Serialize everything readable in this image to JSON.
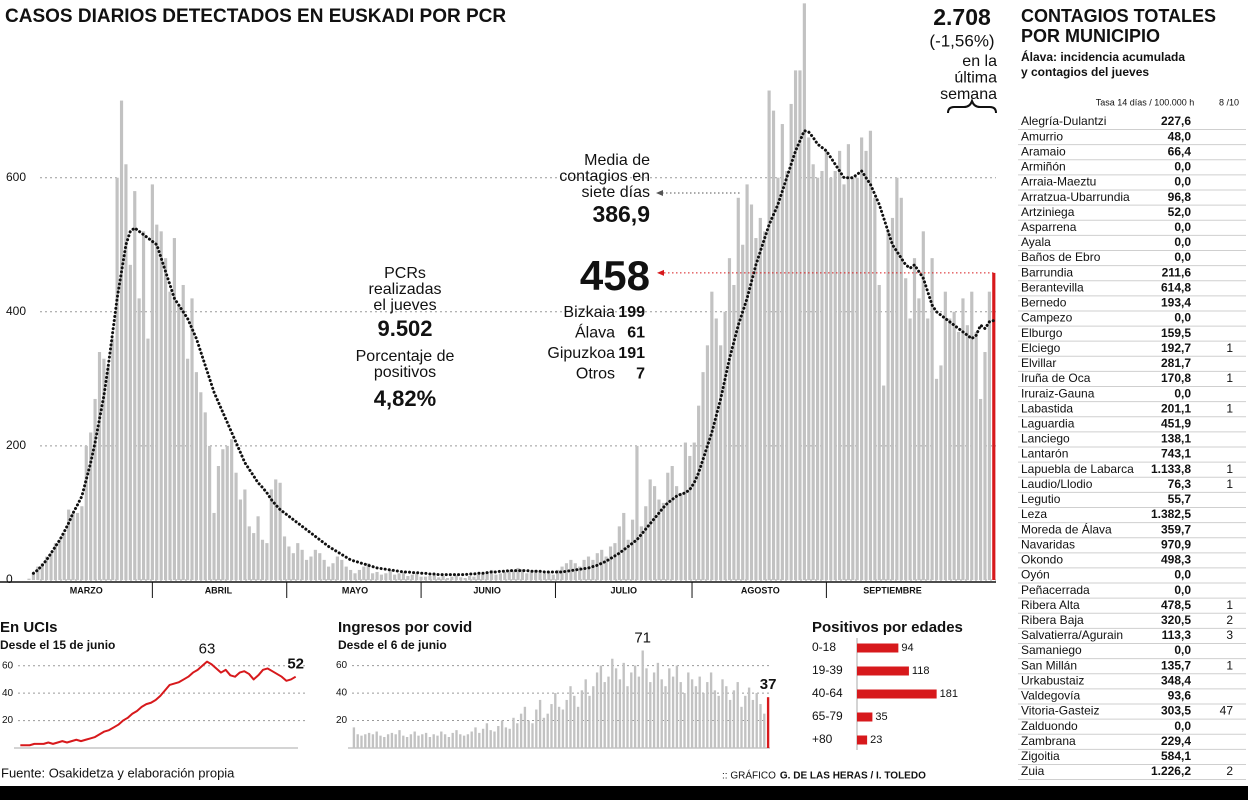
{
  "chart_data": [
    {
      "type": "bar",
      "title": "CASOS DIARIOS DETECTADOS EN EUSKADI POR PCR",
      "categories": [
        null,
        null,
        null,
        null,
        null,
        null,
        null,
        null,
        null,
        null,
        null,
        null,
        null,
        null,
        null,
        "MARZO",
        null,
        null,
        null,
        null,
        null,
        null,
        null,
        null,
        null,
        null,
        null,
        null,
        null,
        null,
        null,
        null,
        null,
        null,
        null,
        null,
        null,
        null,
        null,
        null,
        null,
        null,
        null,
        null,
        null,
        "ABRIL",
        null,
        null,
        null,
        null,
        null,
        null,
        null,
        null,
        null,
        null,
        null,
        null,
        null,
        null,
        null,
        null,
        null,
        null,
        null,
        null,
        null,
        null,
        null,
        null,
        null,
        null,
        null,
        null,
        null,
        null,
        "MAYO",
        null,
        null,
        null,
        null,
        null,
        null,
        null,
        null,
        null,
        null,
        null,
        null,
        null,
        null,
        null,
        null,
        null,
        null,
        null,
        null,
        null,
        null,
        null,
        null,
        null,
        null,
        null,
        null,
        null,
        "JUNIO",
        null,
        null,
        null,
        null,
        null,
        null,
        null,
        null,
        null,
        null,
        null,
        null,
        null,
        null,
        null,
        null,
        null,
        null,
        null,
        null,
        null,
        null,
        null,
        null,
        null,
        null,
        null,
        null,
        null,
        null,
        "JULIO",
        null,
        null,
        null,
        null,
        null,
        null,
        null,
        null,
        null,
        null,
        null,
        null,
        null,
        null,
        null,
        null,
        null,
        null,
        null,
        null,
        null,
        null,
        null,
        null,
        null,
        null,
        null,
        null,
        null,
        null,
        "AGOSTO",
        null,
        null,
        null,
        null,
        null,
        null,
        null,
        null,
        null,
        null,
        null,
        null,
        null,
        null,
        null,
        null,
        null,
        null,
        null,
        null,
        null,
        null,
        null,
        null,
        null,
        null,
        null,
        null,
        null,
        "SEPTIEMBRE",
        null,
        null,
        null,
        null,
        null,
        null,
        null,
        null,
        null,
        null,
        null,
        null,
        null,
        null,
        null,
        null,
        null,
        null,
        null,
        null,
        null,
        null,
        null
      ],
      "series": [
        {
          "type": "bar",
          "color": "#c2c2c2",
          "highlight_last_color": "#d7191c",
          "values": [
            0,
            0,
            2,
            10,
            20,
            25,
            35,
            40,
            55,
            60,
            70,
            105,
            100,
            100,
            110,
            200,
            220,
            270,
            340,
            330,
            320,
            360,
            600,
            715,
            620,
            470,
            580,
            420,
            520,
            360,
            590,
            530,
            520,
            480,
            430,
            510,
            410,
            440,
            330,
            420,
            310,
            280,
            250,
            200,
            100,
            170,
            195,
            200,
            210,
            160,
            120,
            135,
            80,
            70,
            95,
            60,
            55,
            135,
            150,
            145,
            65,
            50,
            40,
            55,
            45,
            30,
            35,
            45,
            40,
            30,
            20,
            25,
            35,
            30,
            20,
            15,
            10,
            15,
            20,
            25,
            10,
            12,
            8,
            10,
            15,
            8,
            10,
            12,
            6,
            8,
            10,
            5,
            5,
            6,
            8,
            4,
            6,
            3,
            5,
            7,
            4,
            3,
            6,
            5,
            8,
            10,
            12,
            15,
            8,
            10,
            12,
            15,
            14,
            18,
            16,
            10,
            12,
            15,
            14,
            10,
            12,
            8,
            15,
            20,
            25,
            30,
            25,
            20,
            30,
            35,
            30,
            40,
            45,
            35,
            50,
            55,
            80,
            100,
            60,
            90,
            200,
            80,
            110,
            150,
            140,
            120,
            115,
            160,
            170,
            140,
            130,
            205,
            185,
            205,
            260,
            310,
            350,
            430,
            390,
            350,
            400,
            480,
            440,
            570,
            500,
            590,
            560,
            510,
            540,
            520,
            730,
            700,
            600,
            680,
            610,
            710,
            760,
            760,
            860,
            660,
            620,
            600,
            610,
            640,
            600,
            610,
            640,
            590,
            650,
            600,
            600,
            660,
            640,
            670,
            570,
            440,
            290,
            520,
            540,
            600,
            570,
            450,
            390,
            480,
            420,
            520,
            390,
            480,
            300,
            320,
            430,
            390,
            400,
            370,
            420,
            380,
            430,
            370,
            270,
            340,
            430,
            458
          ]
        },
        {
          "type": "line",
          "color": "#111111",
          "style": "dotted",
          "values": [
            null,
            null,
            null,
            10,
            15,
            22,
            30,
            40,
            50,
            60,
            72,
            85,
            100,
            112,
            125,
            150,
            175,
            205,
            240,
            275,
            320,
            370,
            420,
            460,
            500,
            520,
            525,
            520,
            515,
            510,
            505,
            500,
            480,
            460,
            440,
            420,
            410,
            400,
            390,
            375,
            360,
            340,
            320,
            300,
            280,
            265,
            250,
            235,
            220,
            205,
            190,
            175,
            165,
            155,
            145,
            138,
            130,
            120,
            112,
            105,
            100,
            95,
            90,
            85,
            80,
            75,
            70,
            65,
            60,
            55,
            50,
            46,
            42,
            38,
            34,
            30,
            28,
            26,
            24,
            22,
            20,
            18,
            17,
            16,
            15,
            14,
            13,
            12,
            12,
            11,
            11,
            10,
            10,
            9,
            9,
            8,
            8,
            8,
            8,
            8,
            8,
            8,
            9,
            9,
            10,
            10,
            11,
            12,
            12,
            13,
            13,
            14,
            14,
            14,
            14,
            14,
            13,
            13,
            13,
            12,
            12,
            12,
            12,
            12,
            13,
            14,
            15,
            16,
            17,
            18,
            20,
            22,
            25,
            28,
            32,
            36,
            40,
            45,
            50,
            55,
            60,
            68,
            76,
            84,
            92,
            100,
            108,
            115,
            120,
            125,
            128,
            130,
            135,
            145,
            160,
            180,
            200,
            220,
            245,
            270,
            300,
            330,
            355,
            380,
            400,
            420,
            445,
            470,
            490,
            510,
            530,
            545,
            560,
            580,
            600,
            620,
            640,
            655,
            670,
            668,
            660,
            650,
            645,
            640,
            630,
            620,
            610,
            600,
            600,
            600,
            605,
            610,
            600,
            590,
            575,
            560,
            540,
            520,
            500,
            490,
            480,
            470,
            465,
            470,
            460,
            450,
            430,
            410,
            400,
            395,
            390,
            385,
            380,
            375,
            370,
            365,
            360,
            365,
            380,
            375,
            385,
            386.9
          ]
        }
      ],
      "ylim": [
        0,
        865
      ],
      "yticks": [
        0,
        200,
        400,
        600
      ],
      "grid": true,
      "annotations": {
        "weekly_total": "2.708",
        "weekly_change": "(-1,56%)",
        "weekly_note": [
          "en la",
          "última",
          "semana"
        ],
        "average_note": [
          "Media de",
          "contagios en",
          "siete días"
        ],
        "average_value": "386,9",
        "pcr_note": [
          "PCRs",
          "realizadas",
          "el jueves"
        ],
        "pcr_value": "9.502",
        "positivity_note": [
          "Porcentaje de",
          "positivos"
        ],
        "positivity_value": "4,82%",
        "breakdown": [
          {
            "name": "Bizkaia",
            "value": 199
          },
          {
            "name": "Álava",
            "value": 61
          },
          {
            "name": "Gipuzkoa",
            "value": 191
          },
          {
            "name": "Otros",
            "value": 7
          }
        ]
      }
    },
    {
      "type": "line",
      "title": "En UCIs",
      "subtitle": "Desde el 15 de junio",
      "color": "#d7191c",
      "values": [
        2,
        2,
        2,
        3,
        3,
        3,
        4,
        3,
        4,
        5,
        4,
        5,
        6,
        5,
        6,
        7,
        8,
        10,
        12,
        13,
        15,
        17,
        20,
        22,
        25,
        27,
        30,
        32,
        33,
        35,
        38,
        42,
        46,
        47,
        48,
        50,
        52,
        55,
        57,
        60,
        63,
        61,
        58,
        55,
        57,
        53,
        52,
        55,
        56,
        54,
        50,
        53,
        57,
        58,
        56,
        54,
        52,
        49,
        50,
        52
      ],
      "ylim": [
        0,
        70
      ],
      "yticks": [
        20,
        40,
        60
      ],
      "grid": true
    },
    {
      "type": "bar",
      "title": "Ingresos por covid",
      "subtitle": "Desde el 6 de junio",
      "color": "#c2c2c2",
      "highlight_last_color": "#d7191c",
      "values": [
        15,
        10,
        9,
        10,
        11,
        10,
        12,
        9,
        8,
        10,
        11,
        10,
        13,
        9,
        8,
        10,
        12,
        9,
        10,
        11,
        8,
        10,
        9,
        12,
        10,
        8,
        11,
        13,
        10,
        9,
        10,
        12,
        15,
        11,
        14,
        18,
        13,
        12,
        16,
        20,
        15,
        14,
        22,
        18,
        25,
        30,
        20,
        18,
        28,
        35,
        22,
        25,
        32,
        40,
        30,
        28,
        35,
        45,
        38,
        30,
        42,
        50,
        38,
        45,
        55,
        60,
        48,
        52,
        65,
        58,
        50,
        62,
        45,
        55,
        60,
        52,
        71,
        58,
        48,
        55,
        62,
        50,
        45,
        58,
        52,
        60,
        48,
        40,
        55,
        50,
        45,
        52,
        40,
        48,
        55,
        42,
        38,
        50,
        45,
        35,
        42,
        48,
        30,
        38,
        44,
        35,
        40,
        32,
        25,
        37
      ],
      "ylim": [
        0,
        75
      ],
      "yticks": [
        20,
        40,
        60
      ],
      "grid": true
    },
    {
      "type": "barh",
      "title": "Positivos por edades",
      "categories": [
        "0-18",
        "19-39",
        "40-64",
        "65-79",
        "+80"
      ],
      "values": [
        94,
        118,
        181,
        35,
        23
      ],
      "color": "#d7191c",
      "xlim": [
        0,
        200
      ]
    }
  ],
  "table": {
    "title": [
      "CONTAGIOS TOTALES",
      "POR MUNICIPIO"
    ],
    "subtitle": [
      "Álava: incidencia acumulada",
      "y contagios del jueves"
    ],
    "header": [
      "Tasa 14 días / 100.000 h",
      "8 /10"
    ],
    "rows": [
      [
        "Alegría-Dulantzi",
        "227,6",
        null
      ],
      [
        "Amurrio",
        "48,0",
        null
      ],
      [
        "Aramaio",
        "66,4",
        null
      ],
      [
        "Armiñón",
        "0,0",
        null
      ],
      [
        "Arraia-Maeztu",
        "0,0",
        null
      ],
      [
        "Arratzua-Ubarrundia",
        "96,8",
        null
      ],
      [
        "Artziniega",
        "52,0",
        null
      ],
      [
        "Asparrena",
        "0,0",
        null
      ],
      [
        "Ayala",
        "0,0",
        null
      ],
      [
        "Baños de Ebro",
        "0,0",
        null
      ],
      [
        "Barrundia",
        "211,6",
        null
      ],
      [
        "Berantevilla",
        "614,8",
        null
      ],
      [
        "Bernedo",
        "193,4",
        null
      ],
      [
        "Campezo",
        "0,0",
        null
      ],
      [
        "Elburgo",
        "159,5",
        null
      ],
      [
        "Elciego",
        "192,7",
        "1"
      ],
      [
        "Elvillar",
        "281,7",
        null
      ],
      [
        "Iruña de Oca",
        "170,8",
        "1"
      ],
      [
        "Iruraiz-Gauna",
        "0,0",
        null
      ],
      [
        "Labastida",
        "201,1",
        "1"
      ],
      [
        "Laguardia",
        "451,9",
        null
      ],
      [
        "Lanciego",
        "138,1",
        null
      ],
      [
        "Lantarón",
        "743,1",
        null
      ],
      [
        "Lapuebla de Labarca",
        "1.133,8",
        "1"
      ],
      [
        "Laudio/Llodio",
        "76,3",
        "1"
      ],
      [
        "Legutio",
        "55,7",
        null
      ],
      [
        "Leza",
        "1.382,5",
        null
      ],
      [
        "Moreda de Álava",
        "359,7",
        null
      ],
      [
        "Navaridas",
        "970,9",
        null
      ],
      [
        "Okondo",
        "498,3",
        null
      ],
      [
        "Oyón",
        "0,0",
        null
      ],
      [
        "Peñacerrada",
        "0,0",
        null
      ],
      [
        "Ribera Alta",
        "478,5",
        "1"
      ],
      [
        "Ribera Baja",
        "320,5",
        "2"
      ],
      [
        "Salvatierra/Agurain",
        "113,3",
        "3"
      ],
      [
        "Samaniego",
        "0,0",
        null
      ],
      [
        "San Millán",
        "135,7",
        "1"
      ],
      [
        "Urkabustaiz",
        "348,4",
        null
      ],
      [
        "Valdegovía",
        "93,6",
        null
      ],
      [
        "Vitoria-Gasteiz",
        "303,5",
        "47"
      ],
      [
        "Zalduondo",
        "0,0",
        null
      ],
      [
        "Zambrana",
        "229,4",
        null
      ],
      [
        "Zigoitia",
        "584,1",
        null
      ],
      [
        "Zuia",
        "1.226,2",
        "2"
      ]
    ]
  },
  "footer": {
    "source": "Fuente: Osakidetza y elaboración propia",
    "credit_label": ":: GRÁFICO",
    "credit_names": "G. DE LAS HERAS / I. TOLEDO"
  }
}
